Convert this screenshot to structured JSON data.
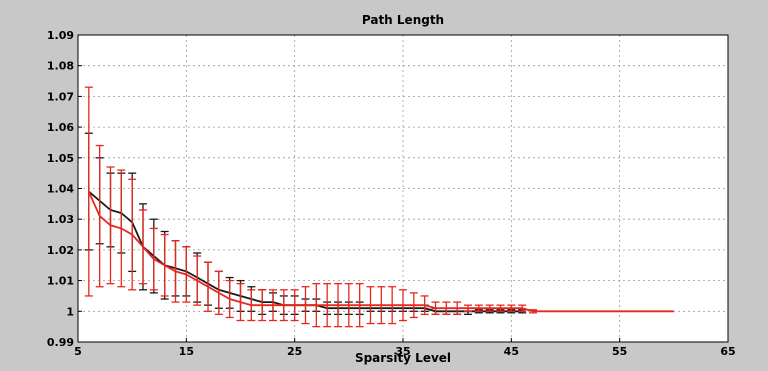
{
  "chart_data": {
    "type": "line",
    "title": "Path Length",
    "xlabel": "Sparsity Level",
    "ylabel": "",
    "xlim": [
      5,
      65
    ],
    "ylim": [
      0.99,
      1.09
    ],
    "xticks": [
      5,
      15,
      25,
      35,
      45,
      55,
      65
    ],
    "yticks": [
      0.99,
      1,
      1.01,
      1.02,
      1.03,
      1.04,
      1.05,
      1.06,
      1.07,
      1.08,
      1.09
    ],
    "ytick_labels": [
      "0.99",
      "1",
      "1.01",
      "1.02",
      "1.03",
      "1.04",
      "1.05",
      "1.06",
      "1.07",
      "1.08",
      "1.09"
    ],
    "xtick_labels": [
      "5",
      "15",
      "25",
      "35",
      "45",
      "55",
      "65"
    ],
    "grid": true,
    "legend": "none",
    "series": [
      {
        "color": "#1a1a1a",
        "points": [
          [
            6,
            1.039,
            0.019
          ],
          [
            7,
            1.036,
            0.014
          ],
          [
            8,
            1.033,
            0.012
          ],
          [
            9,
            1.032,
            0.013
          ],
          [
            10,
            1.029,
            0.016
          ],
          [
            11,
            1.021,
            0.014
          ],
          [
            12,
            1.018,
            0.012
          ],
          [
            13,
            1.015,
            0.011
          ],
          [
            14,
            1.014,
            0.009
          ],
          [
            15,
            1.013,
            0.008
          ],
          [
            16,
            1.011,
            0.008
          ],
          [
            17,
            1.009,
            0.007
          ],
          [
            18,
            1.007,
            0.006
          ],
          [
            19,
            1.006,
            0.005
          ],
          [
            20,
            1.005,
            0.005
          ],
          [
            21,
            1.004,
            0.004
          ],
          [
            22,
            1.003,
            0.004
          ],
          [
            23,
            1.003,
            0.003
          ],
          [
            24,
            1.002,
            0.003
          ],
          [
            25,
            1.002,
            0.003
          ],
          [
            26,
            1.002,
            0.002
          ],
          [
            27,
            1.002,
            0.002
          ],
          [
            28,
            1.001,
            0.002
          ],
          [
            29,
            1.001,
            0.002
          ],
          [
            30,
            1.001,
            0.002
          ],
          [
            31,
            1.001,
            0.002
          ],
          [
            32,
            1.001,
            0.001
          ],
          [
            33,
            1.001,
            0.001
          ],
          [
            34,
            1.001,
            0.001
          ],
          [
            35,
            1.001,
            0.001
          ],
          [
            36,
            1.001,
            0.001
          ],
          [
            37,
            1.001,
            0.001
          ],
          [
            38,
            1.0,
            0.001
          ],
          [
            39,
            1.0,
            0.001
          ],
          [
            40,
            1.0,
            0.001
          ],
          [
            41,
            1.0,
            0.001
          ],
          [
            42,
            1.0,
            0.0005
          ],
          [
            43,
            1.0,
            0.0005
          ],
          [
            44,
            1.0,
            0.0005
          ],
          [
            45,
            1.0,
            0.0005
          ],
          [
            46,
            1.0,
            0.0005
          ]
        ]
      },
      {
        "color": "#e8281e",
        "points": [
          [
            6,
            1.039,
            0.034
          ],
          [
            7,
            1.031,
            0.023
          ],
          [
            8,
            1.028,
            0.019
          ],
          [
            9,
            1.027,
            0.019
          ],
          [
            10,
            1.025,
            0.018
          ],
          [
            11,
            1.021,
            0.012
          ],
          [
            12,
            1.017,
            0.01
          ],
          [
            13,
            1.015,
            0.01
          ],
          [
            14,
            1.013,
            0.01
          ],
          [
            15,
            1.012,
            0.009
          ],
          [
            16,
            1.01,
            0.008
          ],
          [
            17,
            1.008,
            0.008
          ],
          [
            18,
            1.006,
            0.007
          ],
          [
            19,
            1.004,
            0.006
          ],
          [
            20,
            1.003,
            0.006
          ],
          [
            21,
            1.002,
            0.005
          ],
          [
            22,
            1.002,
            0.005
          ],
          [
            23,
            1.002,
            0.005
          ],
          [
            24,
            1.002,
            0.005
          ],
          [
            25,
            1.002,
            0.005
          ],
          [
            26,
            1.002,
            0.006
          ],
          [
            27,
            1.002,
            0.007
          ],
          [
            28,
            1.002,
            0.007
          ],
          [
            29,
            1.002,
            0.007
          ],
          [
            30,
            1.002,
            0.007
          ],
          [
            31,
            1.002,
            0.007
          ],
          [
            32,
            1.002,
            0.006
          ],
          [
            33,
            1.002,
            0.006
          ],
          [
            34,
            1.002,
            0.006
          ],
          [
            35,
            1.002,
            0.005
          ],
          [
            36,
            1.002,
            0.004
          ],
          [
            37,
            1.002,
            0.003
          ],
          [
            38,
            1.001,
            0.002
          ],
          [
            39,
            1.001,
            0.002
          ],
          [
            40,
            1.001,
            0.002
          ],
          [
            41,
            1.001,
            0.001
          ],
          [
            42,
            1.001,
            0.001
          ],
          [
            43,
            1.001,
            0.001
          ],
          [
            44,
            1.001,
            0.001
          ],
          [
            45,
            1.001,
            0.001
          ],
          [
            46,
            1.001,
            0.001
          ],
          [
            47,
            1.0,
            0.0005
          ],
          [
            48,
            1.0,
            0
          ],
          [
            50,
            1.0,
            0
          ],
          [
            52,
            1.0,
            0
          ],
          [
            54,
            1.0,
            0
          ],
          [
            56,
            1.0,
            0
          ],
          [
            58,
            1.0,
            0
          ],
          [
            60,
            1.0,
            0
          ]
        ]
      }
    ],
    "colors": {
      "figure_bg": "#c8c8c8",
      "axes_bg": "#ffffff",
      "grid": "#9a9a9a"
    }
  }
}
